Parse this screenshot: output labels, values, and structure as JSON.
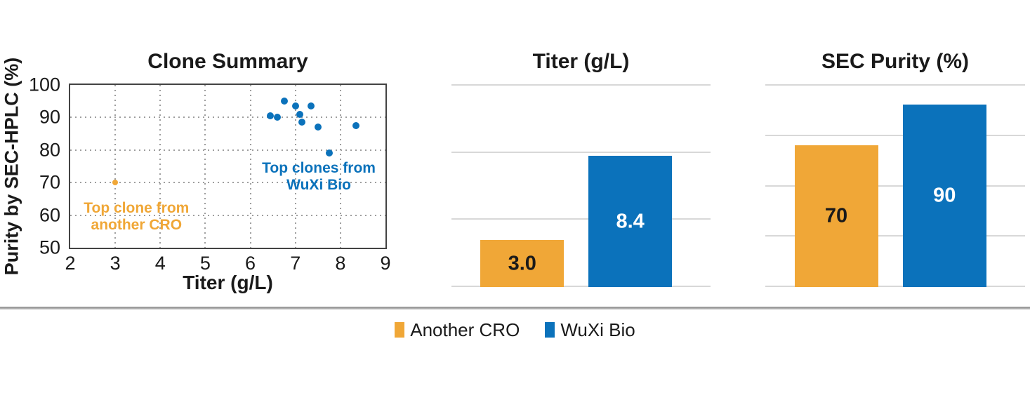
{
  "colors": {
    "another_cro": "#f0a737",
    "wuxi_bio": "#0b72bb",
    "text": "#1a1a1a",
    "axis_border": "#434343",
    "dotted_grid": "#9e9e9e",
    "light_grid": "#d8d8d8"
  },
  "chart_data": [
    {
      "id": "clone_summary",
      "type": "scatter",
      "title": "Clone Summary",
      "xlabel": "Titer (g/L)",
      "ylabel": "Purity by SEC-HPLC (%)",
      "xlim": [
        2,
        9
      ],
      "ylim": [
        50,
        100
      ],
      "xticks": [
        2,
        3,
        4,
        5,
        6,
        7,
        8,
        9
      ],
      "yticks": [
        50,
        60,
        70,
        80,
        90,
        100
      ],
      "grid": "dotted",
      "series": [
        {
          "name": "Another CRO",
          "color": "#f0a737",
          "marker_size": 8,
          "points": [
            [
              3.0,
              70
            ]
          ]
        },
        {
          "name": "WuXi Bio",
          "color": "#0b72bb",
          "marker_size": 10,
          "points": [
            [
              6.45,
              90.5
            ],
            [
              6.6,
              90
            ],
            [
              6.75,
              95
            ],
            [
              7.0,
              93.5
            ],
            [
              7.1,
              91
            ],
            [
              7.15,
              88.5
            ],
            [
              7.35,
              93.5
            ],
            [
              7.5,
              87
            ],
            [
              7.75,
              79
            ],
            [
              8.35,
              87.5
            ]
          ]
        }
      ],
      "annotations": [
        {
          "text_lines": [
            "Top clone from",
            "another CRO"
          ],
          "color": "#f0a737",
          "x": 3.47,
          "y": 59.5
        },
        {
          "text_lines": [
            "Top clones from",
            "WuXi Bio"
          ],
          "color": "#0b72bb",
          "x": 7.52,
          "y": 71.8
        }
      ]
    },
    {
      "id": "titer",
      "type": "bar",
      "title": "Titer (g/L)",
      "categories": [
        "Another CRO",
        "WuXi Bio"
      ],
      "values": [
        3.0,
        8.4
      ],
      "value_labels": [
        "3.0",
        "8.4"
      ],
      "bar_colors": [
        "#f0a737",
        "#0b72bb"
      ],
      "label_colors": [
        "#1a1a1a",
        "#ffffff"
      ],
      "ylim": [
        0,
        13
      ],
      "gridline_count": 4,
      "grid": "solid-light"
    },
    {
      "id": "sec_purity",
      "type": "bar",
      "title": "SEC Purity (%)",
      "categories": [
        "Another CRO",
        "WuXi Bio"
      ],
      "values": [
        70,
        90
      ],
      "value_labels": [
        "70",
        "90"
      ],
      "bar_colors": [
        "#f0a737",
        "#0b72bb"
      ],
      "label_colors": [
        "#1a1a1a",
        "#ffffff"
      ],
      "ylim": [
        0,
        100
      ],
      "gridline_count": 5,
      "grid": "solid-light"
    }
  ],
  "legend": {
    "items": [
      {
        "label": "Another CRO",
        "color": "#f0a737"
      },
      {
        "label": "WuXi Bio",
        "color": "#0b72bb"
      }
    ]
  }
}
